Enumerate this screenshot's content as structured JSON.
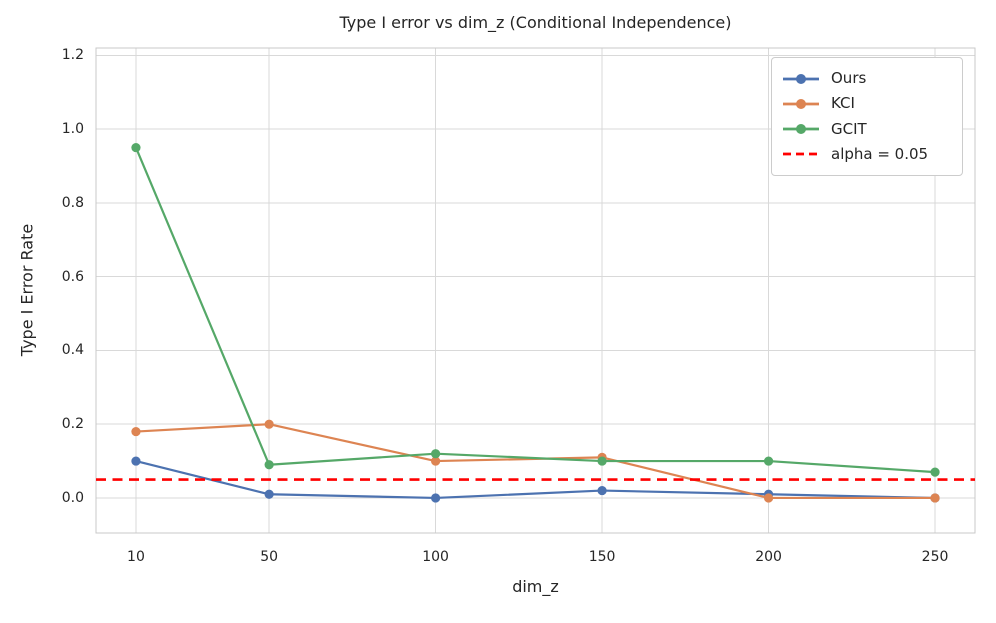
{
  "chart_data": {
    "type": "line",
    "title": "Type I error vs dim_z (Conditional Independence)",
    "xlabel": "dim_z",
    "ylabel": "Type I Error Rate",
    "x": [
      10,
      50,
      100,
      150,
      200,
      250
    ],
    "series": [
      {
        "name": "Ours",
        "color": "#4C72B0",
        "values": [
          0.1,
          0.01,
          0.0,
          0.02,
          0.01,
          0.0
        ]
      },
      {
        "name": "KCI",
        "color": "#DD8452",
        "values": [
          0.18,
          0.2,
          0.1,
          0.11,
          0.0,
          0.0
        ]
      },
      {
        "name": "GCIT",
        "color": "#55A868",
        "values": [
          0.95,
          0.09,
          0.12,
          0.1,
          0.1,
          0.07
        ]
      }
    ],
    "reference_line": {
      "label": "alpha = 0.05",
      "value": 0.05,
      "color": "#FF0000",
      "style": "dashed"
    },
    "xticks": [
      10,
      50,
      100,
      150,
      200,
      250
    ],
    "yticks": [
      "0.0",
      "0.2",
      "0.4",
      "0.6",
      "0.8",
      "1.0",
      "1.2"
    ],
    "xlim": [
      -2,
      262
    ],
    "ylim": [
      -0.095,
      1.22
    ],
    "grid": true,
    "legend_position": "upper right"
  },
  "colors": {
    "grid": "#d9d9d9",
    "spine": "#c9c9c9",
    "text": "#262626",
    "background": "#ffffff"
  }
}
